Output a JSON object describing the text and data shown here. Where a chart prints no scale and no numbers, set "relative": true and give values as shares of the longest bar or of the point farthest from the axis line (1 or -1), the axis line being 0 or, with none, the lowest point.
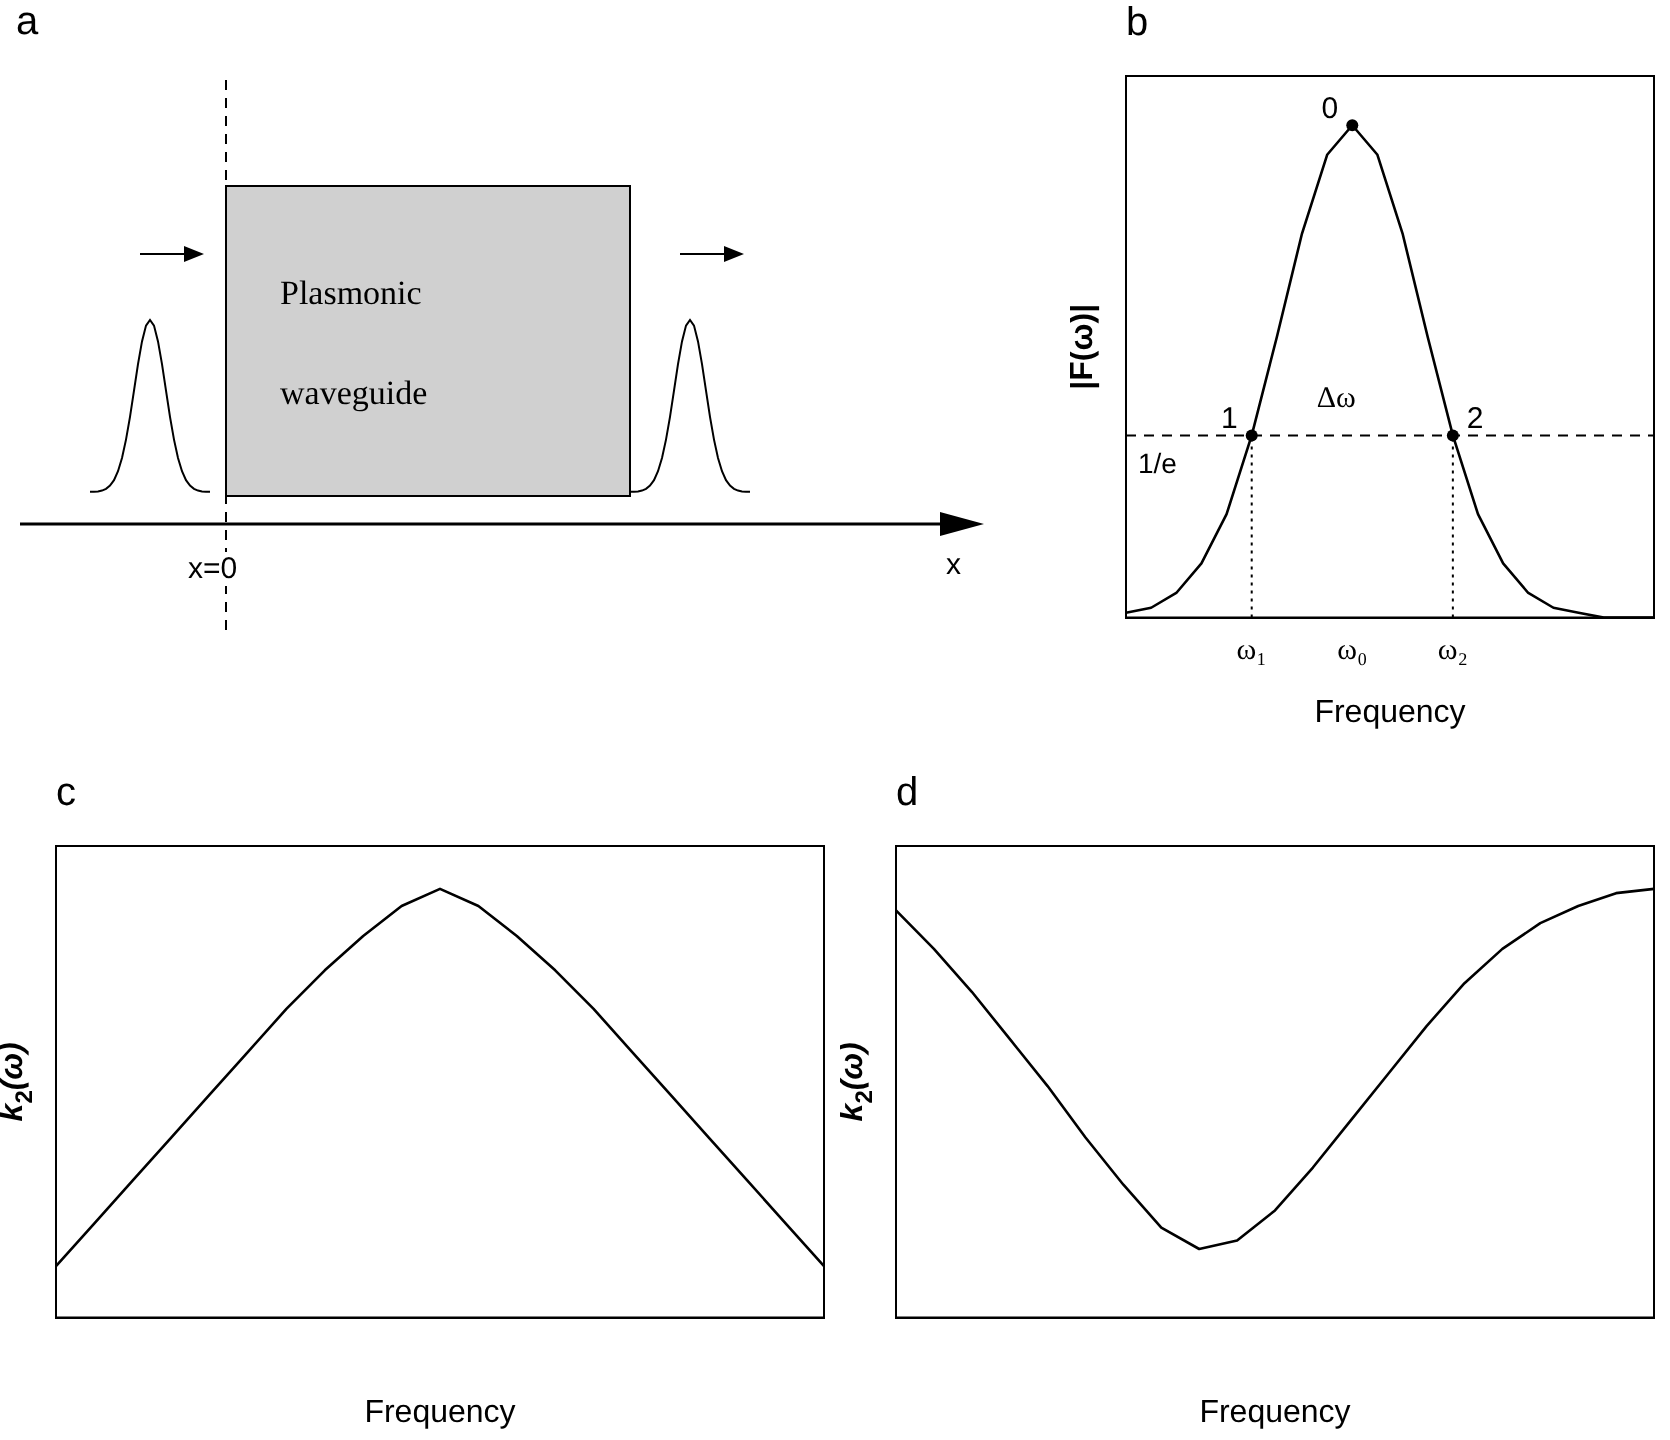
{
  "chart_data": [
    {
      "type": "other",
      "title": "a",
      "annotations": [
        "Plasmonic waveguide",
        "x=0",
        "x"
      ]
    },
    {
      "type": "line",
      "title": "b",
      "xlabel": "Frequency",
      "ylabel": "|F(ω)|",
      "relative": true,
      "marker": "none",
      "categories": [
        null,
        null,
        null,
        null,
        null,
        "ω₁",
        null,
        null,
        null,
        "ω₀",
        null,
        null,
        null,
        "ω₂",
        null,
        null,
        null,
        null,
        null,
        null,
        null,
        null
      ],
      "series": [
        {
          "color": "#000000",
          "values": [
            0.01,
            0.02,
            0.05,
            0.11,
            0.21,
            0.37,
            0.57,
            0.78,
            0.94,
            1,
            0.94,
            0.78,
            0.57,
            0.37,
            0.21,
            0.11,
            0.05,
            0.02,
            0.01,
            0,
            0,
            0
          ]
        }
      ],
      "ref_lines": [
        {
          "axis": "y",
          "value": 0.37,
          "label": "1/e",
          "line_style": "dashed"
        },
        {
          "axis": "x",
          "value": "ω₁",
          "line_style": "dotted"
        },
        {
          "axis": "x",
          "value": "ω₂",
          "line_style": "dotted"
        }
      ],
      "annotations": [
        {
          "text": "0",
          "x": "ω₀",
          "y": 1
        },
        {
          "text": "1",
          "x": "ω₁",
          "y": 0.37
        },
        {
          "text": "2",
          "x": "ω₂",
          "y": 0.37
        },
        {
          "text": "Δω",
          "x": "ω₀",
          "y": 0.37
        }
      ]
    },
    {
      "type": "line",
      "title": "c",
      "xlabel": "Frequency",
      "ylabel": "k$_{2}$(ω)",
      "relative": true,
      "marker": "none",
      "categories": [
        null,
        null,
        null,
        null,
        null,
        null,
        null,
        null,
        null,
        null,
        null,
        null,
        null,
        null,
        null,
        null,
        null,
        null,
        null,
        null,
        null
      ],
      "series": [
        {
          "color": "#000000",
          "values": [
            0.12,
            0.22,
            0.32,
            0.42,
            0.52,
            0.62,
            0.72,
            0.81,
            0.89,
            0.96,
            1,
            0.96,
            0.89,
            0.81,
            0.72,
            0.62,
            0.52,
            0.42,
            0.32,
            0.22,
            0.12
          ]
        }
      ]
    },
    {
      "type": "line",
      "title": "d",
      "xlabel": "Frequency",
      "ylabel": "k$_{2}$(ω)",
      "relative": true,
      "marker": "none",
      "categories": [
        null,
        null,
        null,
        null,
        null,
        null,
        null,
        null,
        null,
        null,
        null,
        null,
        null,
        null,
        null,
        null,
        null,
        null,
        null,
        null,
        null
      ],
      "series": [
        {
          "color": "#000000",
          "values": [
            0.95,
            0.86,
            0.76,
            0.65,
            0.54,
            0.42,
            0.31,
            0.21,
            0.16,
            0.18,
            0.25,
            0.35,
            0.46,
            0.57,
            0.68,
            0.78,
            0.86,
            0.92,
            0.96,
            0.99,
            1
          ]
        }
      ]
    }
  ]
}
